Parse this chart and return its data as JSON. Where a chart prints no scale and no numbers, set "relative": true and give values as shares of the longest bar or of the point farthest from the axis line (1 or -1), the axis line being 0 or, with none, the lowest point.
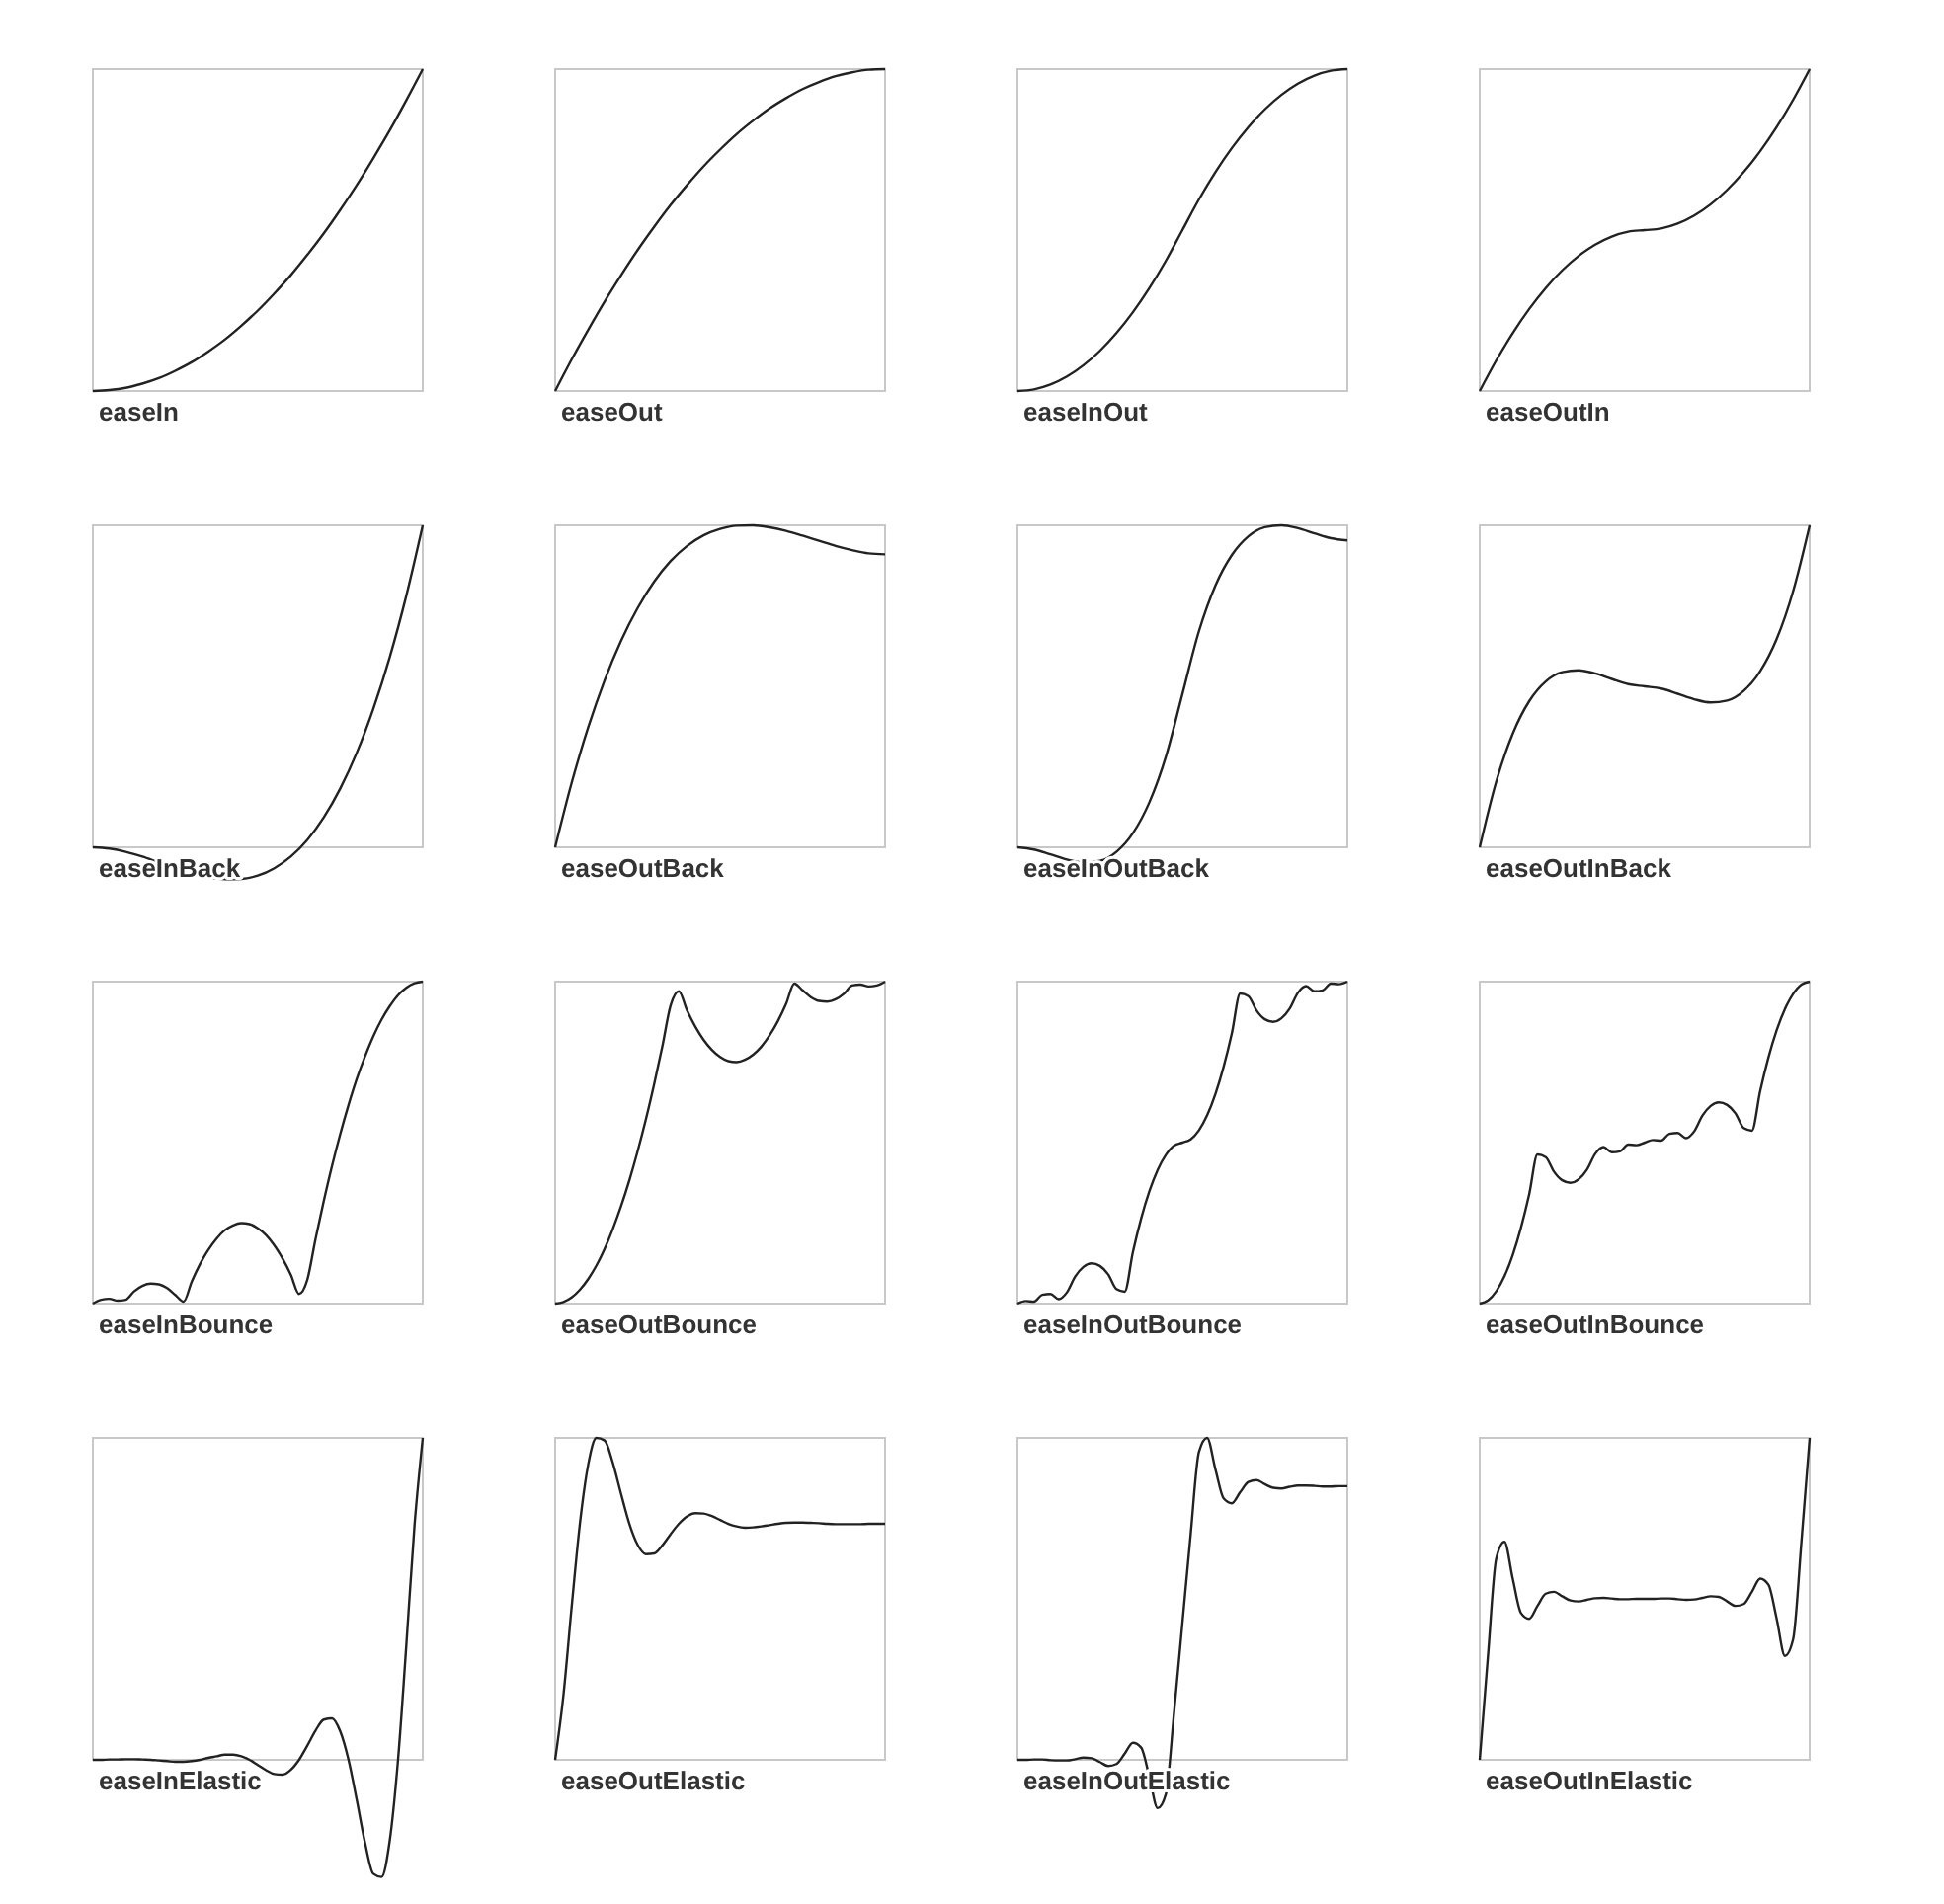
{
  "chart_data": [
    {
      "type": "line",
      "title": "easeIn",
      "relative": true,
      "categories": [
        null,
        null,
        null,
        null,
        null,
        null,
        null,
        null,
        null,
        null,
        null,
        null,
        null,
        null,
        null,
        null,
        null,
        null,
        null,
        null,
        null
      ],
      "series": [
        {
          "color": "#222222",
          "values": [
            0,
            0.003,
            0.01,
            0.023,
            0.04,
            0.063,
            0.09,
            0.123,
            0.16,
            0.203,
            0.25,
            0.303,
            0.36,
            0.423,
            0.49,
            0.563,
            0.64,
            0.723,
            0.81,
            0.903,
            1
          ]
        }
      ]
    },
    {
      "type": "line",
      "title": "easeOut",
      "relative": true,
      "categories": [
        null,
        null,
        null,
        null,
        null,
        null,
        null,
        null,
        null,
        null,
        null,
        null,
        null,
        null,
        null,
        null,
        null,
        null,
        null,
        null,
        null
      ],
      "series": [
        {
          "color": "#222222",
          "values": [
            0,
            0.098,
            0.19,
            0.278,
            0.36,
            0.438,
            0.51,
            0.578,
            0.64,
            0.698,
            0.75,
            0.798,
            0.84,
            0.878,
            0.91,
            0.938,
            0.96,
            0.978,
            0.99,
            0.998,
            1
          ]
        }
      ]
    },
    {
      "type": "line",
      "title": "easeInOut",
      "relative": true,
      "categories": [
        null,
        null,
        null,
        null,
        null,
        null,
        null,
        null,
        null,
        null,
        null,
        null,
        null,
        null,
        null,
        null,
        null,
        null,
        null,
        null,
        null
      ],
      "series": [
        {
          "color": "#222222",
          "values": [
            0,
            0.005,
            0.02,
            0.045,
            0.08,
            0.125,
            0.18,
            0.245,
            0.32,
            0.405,
            0.5,
            0.595,
            0.68,
            0.755,
            0.82,
            0.875,
            0.92,
            0.955,
            0.98,
            0.995,
            1
          ]
        }
      ]
    },
    {
      "type": "line",
      "title": "easeOutIn",
      "relative": true,
      "categories": [
        null,
        null,
        null,
        null,
        null,
        null,
        null,
        null,
        null,
        null,
        null,
        null,
        null,
        null,
        null,
        null,
        null,
        null,
        null,
        null,
        null
      ],
      "series": [
        {
          "color": "#222222",
          "values": [
            0,
            0.095,
            0.18,
            0.255,
            0.32,
            0.375,
            0.42,
            0.455,
            0.48,
            0.495,
            0.5,
            0.505,
            0.52,
            0.545,
            0.58,
            0.625,
            0.68,
            0.745,
            0.82,
            0.905,
            1
          ]
        }
      ]
    },
    {
      "type": "line",
      "title": "easeInBack",
      "relative": true,
      "categories": [
        null,
        null,
        null,
        null,
        null,
        null,
        null,
        null,
        null,
        null,
        null,
        null,
        null,
        null,
        null,
        null,
        null,
        null,
        null,
        null,
        null
      ],
      "series": [
        {
          "color": "#222222",
          "values": [
            0,
            -0.004,
            -0.014,
            -0.029,
            -0.047,
            -0.064,
            -0.08,
            -0.093,
            -0.099,
            -0.098,
            -0.088,
            -0.065,
            -0.029,
            0.023,
            0.093,
            0.183,
            0.294,
            0.43,
            0.591,
            0.781,
            1
          ]
        }
      ]
    },
    {
      "type": "line",
      "title": "easeOutBack",
      "relative": true,
      "categories": [
        null,
        null,
        null,
        null,
        null,
        null,
        null,
        null,
        null,
        null,
        null,
        null,
        null,
        null,
        null,
        null,
        null,
        null,
        null,
        null,
        null
      ],
      "series": [
        {
          "color": "#222222",
          "values": [
            0,
            0.2,
            0.372,
            0.519,
            0.642,
            0.743,
            0.825,
            0.889,
            0.936,
            0.969,
            0.989,
            0.999,
            1,
            0.994,
            0.983,
            0.968,
            0.952,
            0.936,
            0.923,
            0.913,
            0.91
          ]
        }
      ]
    },
    {
      "type": "line",
      "title": "easeInOutBack",
      "relative": true,
      "categories": [
        null,
        null,
        null,
        null,
        null,
        null,
        null,
        null,
        null,
        null,
        null,
        null,
        null,
        null,
        null,
        null,
        null,
        null,
        null,
        null,
        null
      ],
      "series": [
        {
          "color": "#222222",
          "values": [
            0,
            -0.007,
            -0.022,
            -0.038,
            -0.047,
            -0.042,
            -0.014,
            0.044,
            0.14,
            0.282,
            0.476,
            0.671,
            0.813,
            0.908,
            0.966,
            0.994,
            1,
            0.991,
            0.975,
            0.96,
            0.953
          ]
        }
      ]
    },
    {
      "type": "line",
      "title": "easeOutInBack",
      "relative": true,
      "categories": [
        null,
        null,
        null,
        null,
        null,
        null,
        null,
        null,
        null,
        null,
        null,
        null,
        null,
        null,
        null,
        null,
        null,
        null,
        null,
        null,
        null
      ],
      "series": [
        {
          "color": "#222222",
          "values": [
            0,
            0.204,
            0.353,
            0.454,
            0.515,
            0.544,
            0.55,
            0.54,
            0.523,
            0.507,
            0.5,
            0.493,
            0.477,
            0.46,
            0.45,
            0.456,
            0.486,
            0.547,
            0.647,
            0.796,
            1
          ]
        }
      ]
    },
    {
      "type": "line",
      "title": "easeInBounce",
      "relative": true,
      "categories": [
        null,
        null,
        null,
        null,
        null,
        null,
        null,
        null,
        null,
        null,
        null,
        null,
        null,
        null,
        null,
        null,
        null,
        null,
        null,
        null,
        null,
        null,
        null,
        null,
        null,
        null,
        null,
        null,
        null,
        null,
        null,
        null,
        null,
        null,
        null,
        null,
        null,
        null,
        null,
        null,
        null
      ],
      "series": [
        {
          "color": "#222222",
          "values": [
            0,
            0.012,
            0.015,
            0.009,
            0.012,
            0.038,
            0.055,
            0.062,
            0.06,
            0.048,
            0.027,
            0.006,
            0.069,
            0.123,
            0.167,
            0.202,
            0.228,
            0.243,
            0.25,
            0.247,
            0.234,
            0.213,
            0.181,
            0.14,
            0.09,
            0.03,
            0.074,
            0.201,
            0.319,
            0.428,
            0.527,
            0.617,
            0.698,
            0.768,
            0.83,
            0.882,
            0.924,
            0.958,
            0.981,
            0.995,
            1
          ]
        }
      ]
    },
    {
      "type": "line",
      "title": "easeOutBounce",
      "relative": true,
      "categories": [
        null,
        null,
        null,
        null,
        null,
        null,
        null,
        null,
        null,
        null,
        null,
        null,
        null,
        null,
        null,
        null,
        null,
        null,
        null,
        null,
        null,
        null,
        null,
        null,
        null,
        null,
        null,
        null,
        null,
        null,
        null,
        null,
        null,
        null,
        null,
        null,
        null,
        null,
        null,
        null,
        null
      ],
      "series": [
        {
          "color": "#222222",
          "values": [
            0,
            0.005,
            0.019,
            0.043,
            0.076,
            0.118,
            0.17,
            0.232,
            0.303,
            0.383,
            0.473,
            0.572,
            0.681,
            0.799,
            0.926,
            0.97,
            0.91,
            0.86,
            0.819,
            0.788,
            0.766,
            0.753,
            0.75,
            0.757,
            0.773,
            0.798,
            0.833,
            0.877,
            0.931,
            0.994,
            0.973,
            0.952,
            0.94,
            0.938,
            0.945,
            0.962,
            0.988,
            0.991,
            0.985,
            0.988,
            1
          ]
        }
      ]
    },
    {
      "type": "line",
      "title": "easeInOutBounce",
      "relative": true,
      "categories": [
        null,
        null,
        null,
        null,
        null,
        null,
        null,
        null,
        null,
        null,
        null,
        null,
        null,
        null,
        null,
        null,
        null,
        null,
        null,
        null,
        null,
        null,
        null,
        null,
        null,
        null,
        null,
        null,
        null,
        null,
        null,
        null,
        null,
        null,
        null,
        null,
        null,
        null,
        null,
        null,
        null
      ],
      "series": [
        {
          "color": "#222222",
          "values": [
            0,
            0.008,
            0.006,
            0.027,
            0.03,
            0.014,
            0.035,
            0.084,
            0.114,
            0.125,
            0.117,
            0.091,
            0.045,
            0.037,
            0.16,
            0.264,
            0.349,
            0.415,
            0.462,
            0.491,
            0.5,
            0.51,
            0.538,
            0.585,
            0.651,
            0.736,
            0.84,
            0.963,
            0.955,
            0.91,
            0.883,
            0.875,
            0.886,
            0.916,
            0.965,
            0.986,
            0.97,
            0.973,
            0.994,
            0.992,
            1
          ]
        }
      ]
    },
    {
      "type": "line",
      "title": "easeOutInBounce",
      "relative": true,
      "categories": [
        null,
        null,
        null,
        null,
        null,
        null,
        null,
        null,
        null,
        null,
        null,
        null,
        null,
        null,
        null,
        null,
        null,
        null,
        null,
        null,
        null,
        null,
        null,
        null,
        null,
        null,
        null,
        null,
        null,
        null,
        null,
        null,
        null,
        null,
        null,
        null,
        null,
        null,
        null,
        null,
        null
      ],
      "series": [
        {
          "color": "#222222",
          "values": [
            0,
            0.01,
            0.038,
            0.085,
            0.151,
            0.236,
            0.34,
            0.463,
            0.455,
            0.41,
            0.383,
            0.375,
            0.386,
            0.416,
            0.465,
            0.486,
            0.47,
            0.473,
            0.494,
            0.492,
            0.5,
            0.508,
            0.506,
            0.527,
            0.53,
            0.514,
            0.535,
            0.584,
            0.614,
            0.625,
            0.617,
            0.591,
            0.545,
            0.537,
            0.66,
            0.764,
            0.849,
            0.915,
            0.962,
            0.991,
            1
          ]
        }
      ]
    },
    {
      "type": "line",
      "title": "easeInElastic",
      "relative": true,
      "categories": [
        null,
        null,
        null,
        null,
        null,
        null,
        null,
        null,
        null,
        null,
        null,
        null,
        null,
        null,
        null,
        null,
        null,
        null,
        null,
        null,
        null,
        null,
        null,
        null,
        null,
        null,
        null,
        null,
        null,
        null,
        null,
        null,
        null,
        null,
        null,
        null,
        null,
        null,
        null,
        null,
        null
      ],
      "series": [
        {
          "color": "#222222",
          "values": [
            0,
            0,
            0.001,
            0.001,
            0.002,
            0.002,
            0.001,
            0,
            -0.002,
            -0.004,
            -0.006,
            -0.006,
            -0.004,
            0,
            0.006,
            0.011,
            0.016,
            0.016,
            0.011,
            0,
            -0.016,
            -0.032,
            -0.044,
            -0.046,
            -0.031,
            0,
            0.044,
            0.091,
            0.125,
            0.129,
            0.088,
            0,
            -0.125,
            -0.258,
            -0.354,
            -0.364,
            -0.25,
            0,
            0.354,
            0.728,
            1
          ]
        }
      ]
    },
    {
      "type": "line",
      "title": "easeOutElastic",
      "relative": true,
      "categories": [
        null,
        null,
        null,
        null,
        null,
        null,
        null,
        null,
        null,
        null,
        null,
        null,
        null,
        null,
        null,
        null,
        null,
        null,
        null,
        null,
        null,
        null,
        null,
        null,
        null,
        null,
        null,
        null,
        null,
        null,
        null,
        null,
        null,
        null,
        null,
        null,
        null,
        null,
        null,
        null,
        null
      ],
      "series": [
        {
          "color": "#222222",
          "values": [
            0,
            0.199,
            0.474,
            0.733,
            0.916,
            1,
            0.992,
            0.922,
            0.825,
            0.733,
            0.668,
            0.639,
            0.641,
            0.666,
            0.701,
            0.733,
            0.756,
            0.766,
            0.765,
            0.757,
            0.745,
            0.733,
            0.725,
            0.721,
            0.722,
            0.725,
            0.729,
            0.733,
            0.736,
            0.737,
            0.737,
            0.736,
            0.735,
            0.733,
            0.732,
            0.732,
            0.732,
            0.732,
            0.733,
            0.733,
            0.733
          ]
        }
      ]
    },
    {
      "type": "line",
      "title": "easeInOutElastic",
      "relative": true,
      "categories": [
        null,
        null,
        null,
        null,
        null,
        null,
        null,
        null,
        null,
        null,
        null,
        null,
        null,
        null,
        null,
        null,
        null,
        null,
        null,
        null,
        null,
        null,
        null,
        null,
        null,
        null,
        null,
        null,
        null,
        null,
        null,
        null,
        null,
        null,
        null,
        null,
        null,
        null,
        null,
        null,
        null
      ],
      "series": [
        {
          "color": "#222222",
          "values": [
            0,
            0,
            0.001,
            0.001,
            -0.001,
            -0.002,
            -0.002,
            0.002,
            0.007,
            0.005,
            -0.007,
            -0.019,
            -0.013,
            0.019,
            0.053,
            0.038,
            -0.053,
            -0.15,
            -0.106,
            0.15,
            0.425,
            0.7,
            0.956,
            1,
            0.903,
            0.812,
            0.797,
            0.831,
            0.863,
            0.869,
            0.856,
            0.845,
            0.843,
            0.848,
            0.852,
            0.852,
            0.851,
            0.849,
            0.849,
            0.85,
            0.85
          ]
        }
      ]
    },
    {
      "type": "line",
      "title": "easeOutInElastic",
      "relative": true,
      "categories": [
        null,
        null,
        null,
        null,
        null,
        null,
        null,
        null,
        null,
        null,
        null,
        null,
        null,
        null,
        null,
        null,
        null,
        null,
        null,
        null,
        null,
        null,
        null,
        null,
        null,
        null,
        null,
        null,
        null,
        null,
        null,
        null,
        null,
        null,
        null,
        null,
        null,
        null,
        null,
        null,
        null
      ],
      "series": [
        {
          "color": "#222222",
          "values": [
            0,
            0.323,
            0.625,
            0.677,
            0.563,
            0.456,
            0.438,
            0.478,
            0.516,
            0.522,
            0.508,
            0.495,
            0.492,
            0.497,
            0.502,
            0.503,
            0.501,
            0.499,
            0.499,
            0.5,
            0.5,
            0.5,
            0.501,
            0.501,
            0.499,
            0.497,
            0.498,
            0.503,
            0.508,
            0.506,
            0.492,
            0.478,
            0.484,
            0.522,
            0.563,
            0.544,
            0.438,
            0.323,
            0.375,
            0.677,
            1
          ]
        }
      ]
    }
  ]
}
